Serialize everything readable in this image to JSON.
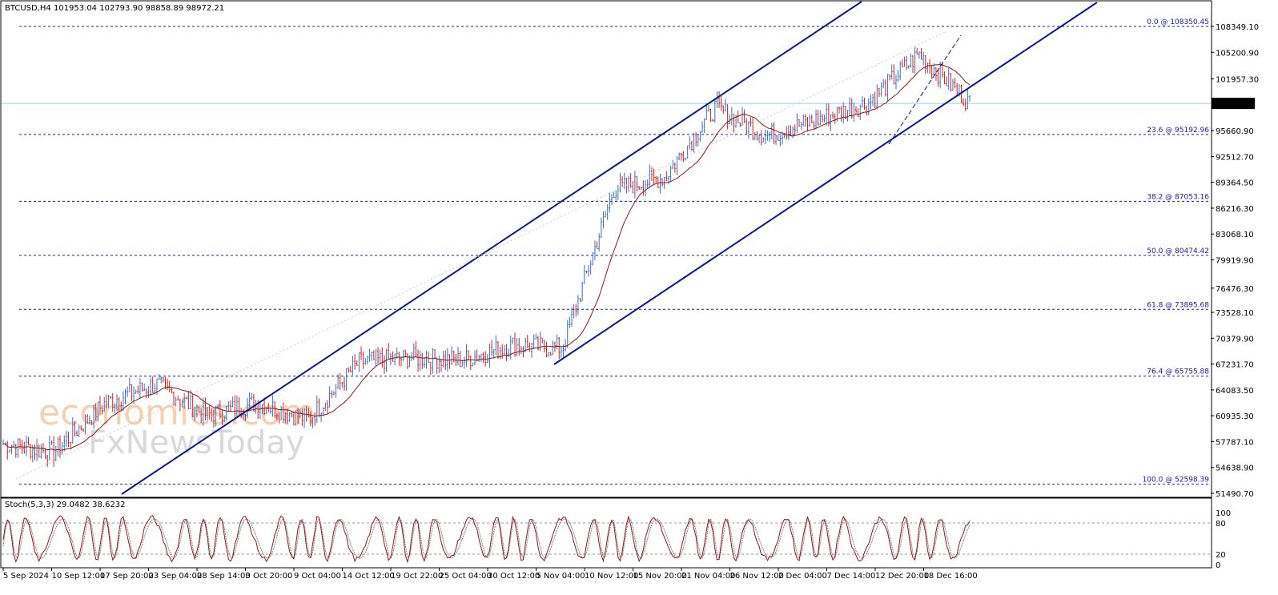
{
  "window": {
    "symbol_header": "BTCUSD,H4  101953.04 102793.90 98858.89 98972.21",
    "stoch_header": "Stoch(5,3,3) 29.0482 38.6232"
  },
  "watermark": {
    "line1": "economies.com",
    "line2": "FxNewsToday"
  },
  "colors": {
    "bull_candle": "#3a6fc4",
    "bear_candle": "#d42020",
    "ma": "#8b1a1a",
    "channel": "#0a1a8a",
    "fib": "#1a1aa0",
    "price_line": "#9fd0e6",
    "stoch_main": "#8b1a1a",
    "stoch_signal": "#808080"
  },
  "price_axis_labels": [
    "108349.10",
    "105200.90",
    "101957.30",
    "98972.21",
    "95660.90",
    "92512.70",
    "89364.50",
    "86216.30",
    "83068.10",
    "79919.90",
    "76476.30",
    "73528.10",
    "70379.90",
    "67231.70",
    "64083.50",
    "60935.30",
    "57787.10",
    "54638.90",
    "51490.70"
  ],
  "current_price_label": "98972.21",
  "fib_levels": [
    {
      "label": "0.0 @ 108350.45",
      "value": 108350.45
    },
    {
      "label": "23.6 @ 95192.96",
      "value": 95192.96
    },
    {
      "label": "38.2 @ 87053.16",
      "value": 87053.16
    },
    {
      "label": "50.0 @ 80474.42",
      "value": 80474.42
    },
    {
      "label": "61.8 @ 73895.68",
      "value": 73895.68
    },
    {
      "label": "76.4 @ 65755.88",
      "value": 65755.88
    },
    {
      "label": "100.0 @ 52598.39",
      "value": 52598.39
    }
  ],
  "time_axis_labels": [
    "5 Sep 2024",
    "10 Sep 12:00",
    "17 Sep 20:00",
    "23 Sep 04:00",
    "28 Sep 14:00",
    "3 Oct 20:00",
    "9 Oct 04:00",
    "14 Oct 12:00",
    "19 Oct 22:00",
    "25 Oct 04:00",
    "30 Oct 12:00",
    "5 Nov 04:00",
    "10 Nov 12:00",
    "15 Nov 20:00",
    "21 Nov 04:00",
    "26 Nov 12:00",
    "2 Dec 04:00",
    "7 Dec 14:00",
    "12 Dec 20:00",
    "18 Dec 16:00"
  ],
  "stoch_axis_labels": [
    "100",
    "80",
    "20",
    "0"
  ],
  "chart_data": {
    "type": "line",
    "title": "BTCUSD,H4",
    "ohlc_last": {
      "open": 101953.04,
      "high": 102793.9,
      "low": 98858.89,
      "close": 98972.21
    },
    "ylim": [
      51490.7,
      108349.1
    ],
    "x": [
      "5 Sep",
      "10 Sep",
      "17 Sep",
      "23 Sep",
      "28 Sep",
      "3 Oct",
      "9 Oct",
      "14 Oct",
      "19 Oct",
      "25 Oct",
      "30 Oct",
      "5 Nov",
      "10 Nov",
      "15 Nov",
      "21 Nov",
      "26 Nov",
      "2 Dec",
      "7 Dec",
      "12 Dec",
      "18 Dec"
    ],
    "series": [
      {
        "name": "",
        "values": [
          57500,
          56500,
          62500,
          64800,
          61000,
          62500,
          60500,
          67500,
          68000,
          67700,
          69500,
          69200,
          88500,
          90000,
          98500,
          95000,
          97000,
          99000,
          105000,
          99000
        ]
      }
    ],
    "stochastic": {
      "k": 29.0482,
      "d": 38.6232,
      "levels": [
        20,
        80
      ]
    }
  }
}
